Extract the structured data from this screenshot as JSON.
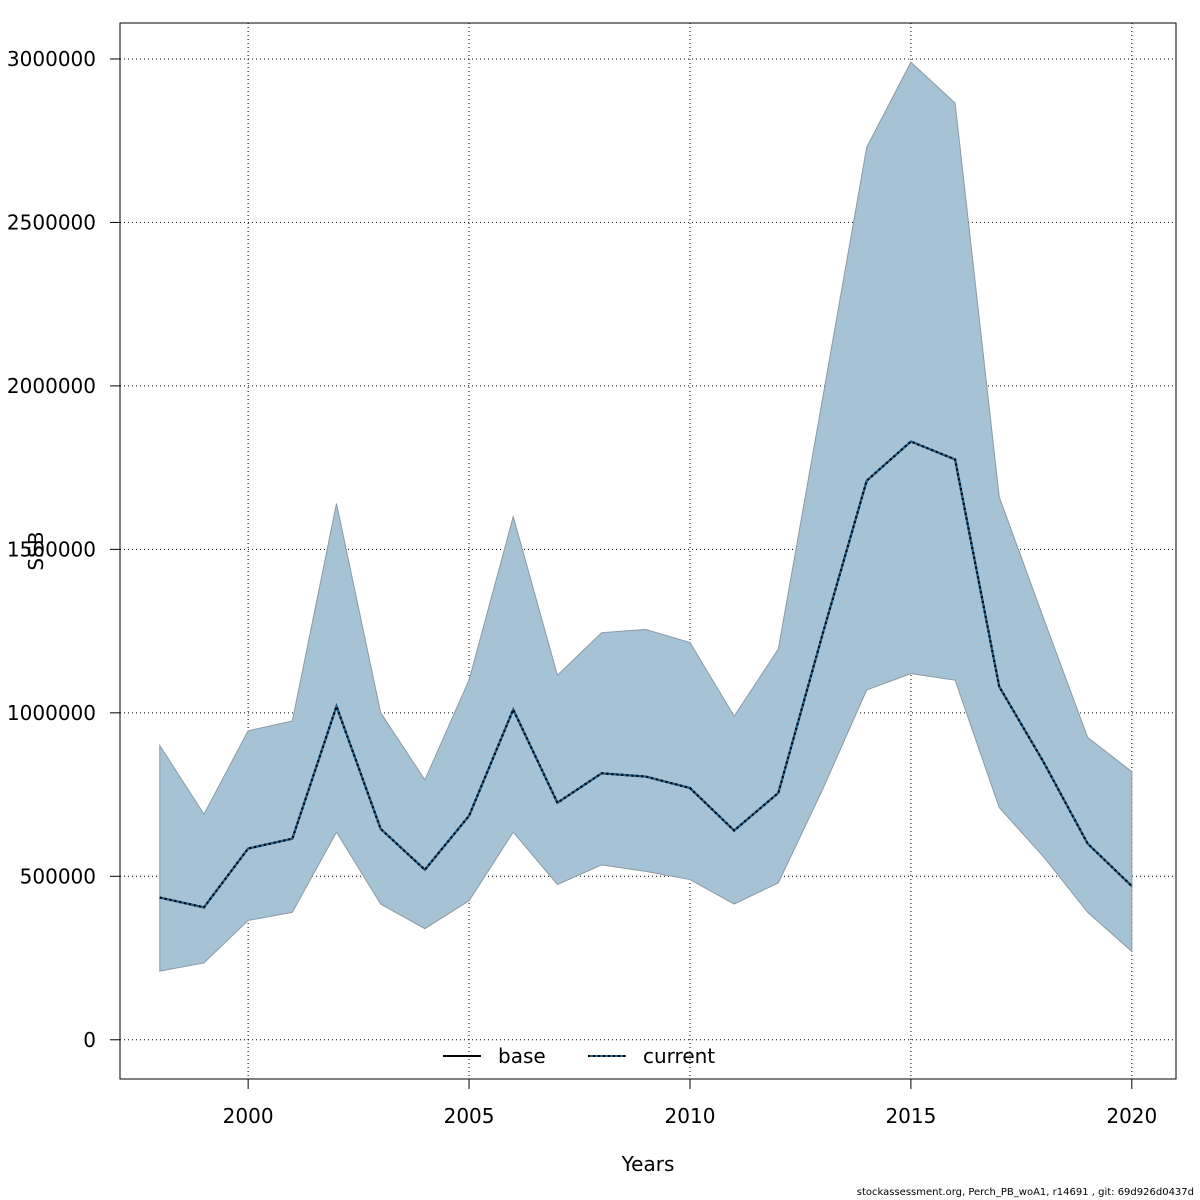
{
  "chart_data": {
    "type": "area",
    "title": "",
    "xlabel": "Years",
    "ylabel": "SSB",
    "xlim": [
      1997.1,
      2021.0
    ],
    "ylim": [
      -120000,
      3110000
    ],
    "x_ticks": [
      2000,
      2005,
      2010,
      2015,
      2020
    ],
    "y_ticks": [
      0,
      500000,
      1000000,
      1500000,
      2000000,
      2500000,
      3000000
    ],
    "grid": true,
    "legend_position": "bottom",
    "legend": [
      {
        "label": "base",
        "style": "solid",
        "color": "#000000"
      },
      {
        "label": "current",
        "style": "dotted",
        "color": "#1f5f8b"
      }
    ],
    "x": [
      1998,
      1999,
      2000,
      2001,
      2002,
      2003,
      2004,
      2005,
      2006,
      2007,
      2008,
      2009,
      2010,
      2011,
      2012,
      2013,
      2014,
      2015,
      2016,
      2017,
      2018,
      2019,
      2020
    ],
    "series": [
      {
        "name": "base",
        "style": "solid",
        "values": [
          435000,
          405000,
          585000,
          615000,
          1020000,
          645000,
          520000,
          685000,
          1010000,
          725000,
          815000,
          805000,
          770000,
          640000,
          755000,
          1240000,
          1710000,
          1830000,
          1775000,
          1080000,
          850000,
          600000,
          470000
        ]
      },
      {
        "name": "current",
        "style": "dotted",
        "values": [
          435000,
          405000,
          585000,
          615000,
          1020000,
          645000,
          520000,
          685000,
          1010000,
          725000,
          815000,
          805000,
          770000,
          640000,
          755000,
          1240000,
          1710000,
          1830000,
          1775000,
          1080000,
          850000,
          600000,
          470000
        ]
      }
    ],
    "band": {
      "lower": [
        210000,
        235000,
        365000,
        390000,
        635000,
        415000,
        340000,
        425000,
        635000,
        475000,
        535000,
        515000,
        490000,
        415000,
        480000,
        765000,
        1070000,
        1120000,
        1100000,
        710000,
        560000,
        390000,
        270000
      ],
      "upper": [
        900000,
        690000,
        945000,
        975000,
        1640000,
        1000000,
        795000,
        1100000,
        1600000,
        1115000,
        1245000,
        1255000,
        1215000,
        990000,
        1195000,
        1960000,
        2730000,
        2990000,
        2865000,
        1660000,
        1290000,
        925000,
        820000
      ]
    },
    "colors": {
      "band_fill": "#a5c3d5",
      "band_edge": "#8a9aa4",
      "current_line": "#1f5f8b",
      "base_line": "#000000"
    }
  },
  "footer": {
    "note": "stockassessment.org, Perch_PB_woA1, r14691 , git: 69d926d0437d"
  }
}
